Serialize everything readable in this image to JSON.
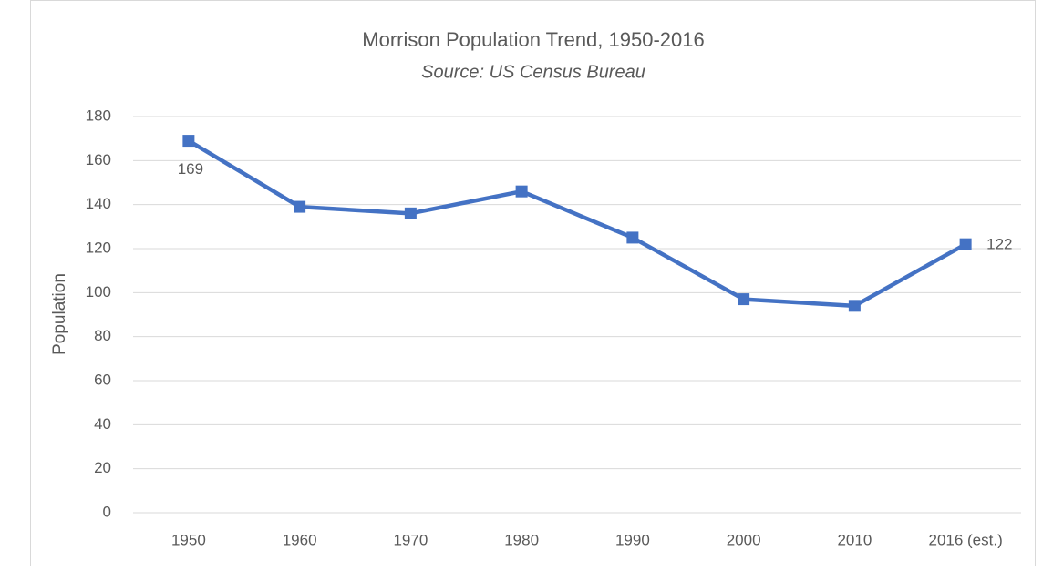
{
  "chart_data": {
    "type": "line",
    "title": "Morrison Population Trend, 1950-2016",
    "subtitle": "Source: US Census Bureau",
    "y_label": "Population",
    "categories": [
      "1950",
      "1960",
      "1970",
      "1980",
      "1990",
      "2000",
      "2010",
      "2016 (est.)"
    ],
    "series": [
      {
        "name": "Population",
        "color": "#4472c4",
        "values": [
          169,
          139,
          136,
          146,
          125,
          97,
          94,
          122
        ],
        "value_labels": [
          "169",
          null,
          null,
          null,
          null,
          null,
          null,
          "122"
        ]
      }
    ],
    "ylim": [
      0,
      180
    ],
    "yticks": [
      0,
      20,
      40,
      60,
      80,
      100,
      120,
      140,
      160,
      180
    ],
    "grid": true,
    "legend": false
  }
}
